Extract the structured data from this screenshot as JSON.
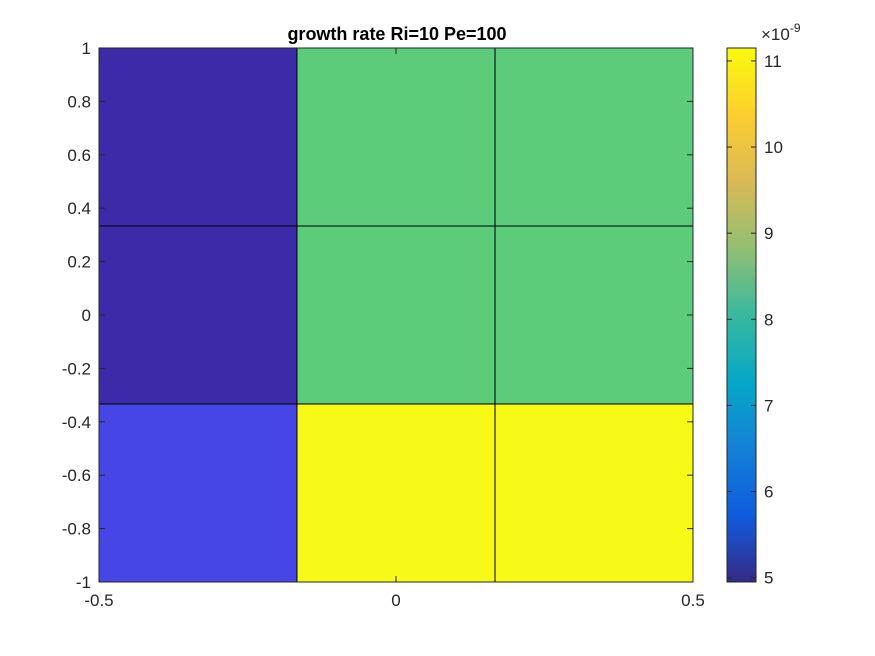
{
  "chart_data": {
    "type": "heatmap",
    "title": "growth rate Ri=10 Pe=100",
    "xlabel": "",
    "ylabel": "",
    "x_edges": [
      -0.5,
      -0.1667,
      0.1667,
      0.5
    ],
    "y_edges": [
      -1,
      -0.3333,
      0.3333,
      1
    ],
    "rows": [
      {
        "y_range": [
          0.3333,
          1
        ],
        "values": [
          5.05e-09,
          8.85e-09,
          8.85e-09
        ],
        "colors": [
          "#3d2aa9",
          "#5ccc7a",
          "#5ccc7a"
        ]
      },
      {
        "y_range": [
          -0.3333,
          0.3333
        ],
        "values": [
          5.05e-09,
          8.85e-09,
          8.85e-09
        ],
        "colors": [
          "#3d2aa9",
          "#5ccc7a",
          "#5ccc7a"
        ]
      },
      {
        "y_range": [
          -1,
          -0.3333
        ],
        "values": [
          5.75e-09,
          1.11e-08,
          1.11e-08
        ],
        "colors": [
          "#4646e6",
          "#f7f916",
          "#f7f916"
        ]
      }
    ],
    "xlim": [
      -0.5,
      0.5
    ],
    "ylim": [
      -1,
      1
    ],
    "x_ticks": [
      {
        "value": -0.5,
        "label": "-0.5"
      },
      {
        "value": 0,
        "label": "0"
      },
      {
        "value": 0.5,
        "label": "0.5"
      }
    ],
    "y_ticks": [
      {
        "value": 1,
        "label": "1"
      },
      {
        "value": 0.8,
        "label": "0.8"
      },
      {
        "value": 0.6,
        "label": "0.6"
      },
      {
        "value": 0.4,
        "label": "0.4"
      },
      {
        "value": 0.2,
        "label": "0.2"
      },
      {
        "value": 0,
        "label": "0"
      },
      {
        "value": -0.2,
        "label": "-0.2"
      },
      {
        "value": -0.4,
        "label": "-0.4"
      },
      {
        "value": -0.6,
        "label": "-0.6"
      },
      {
        "value": -0.8,
        "label": "-0.8"
      },
      {
        "value": -1,
        "label": "-1"
      }
    ],
    "colorbar": {
      "colormap": "parula",
      "range": [
        4.95,
        11.15
      ],
      "exponent_label": "×10",
      "exponent_power": "-9",
      "ticks": [
        {
          "value": 5,
          "label": "5"
        },
        {
          "value": 6,
          "label": "6"
        },
        {
          "value": 7,
          "label": "7"
        },
        {
          "value": 8,
          "label": "8"
        },
        {
          "value": 9,
          "label": "9"
        },
        {
          "value": 10,
          "label": "10"
        },
        {
          "value": 11,
          "label": "11"
        }
      ],
      "stops": [
        "#352a87",
        "#0f5cdd",
        "#1481d6",
        "#06a7c6",
        "#38b99e",
        "#92bf73",
        "#d9ba56",
        "#fcce2e",
        "#f9fb0e"
      ]
    },
    "grid": false,
    "edge_color": "#000000"
  }
}
